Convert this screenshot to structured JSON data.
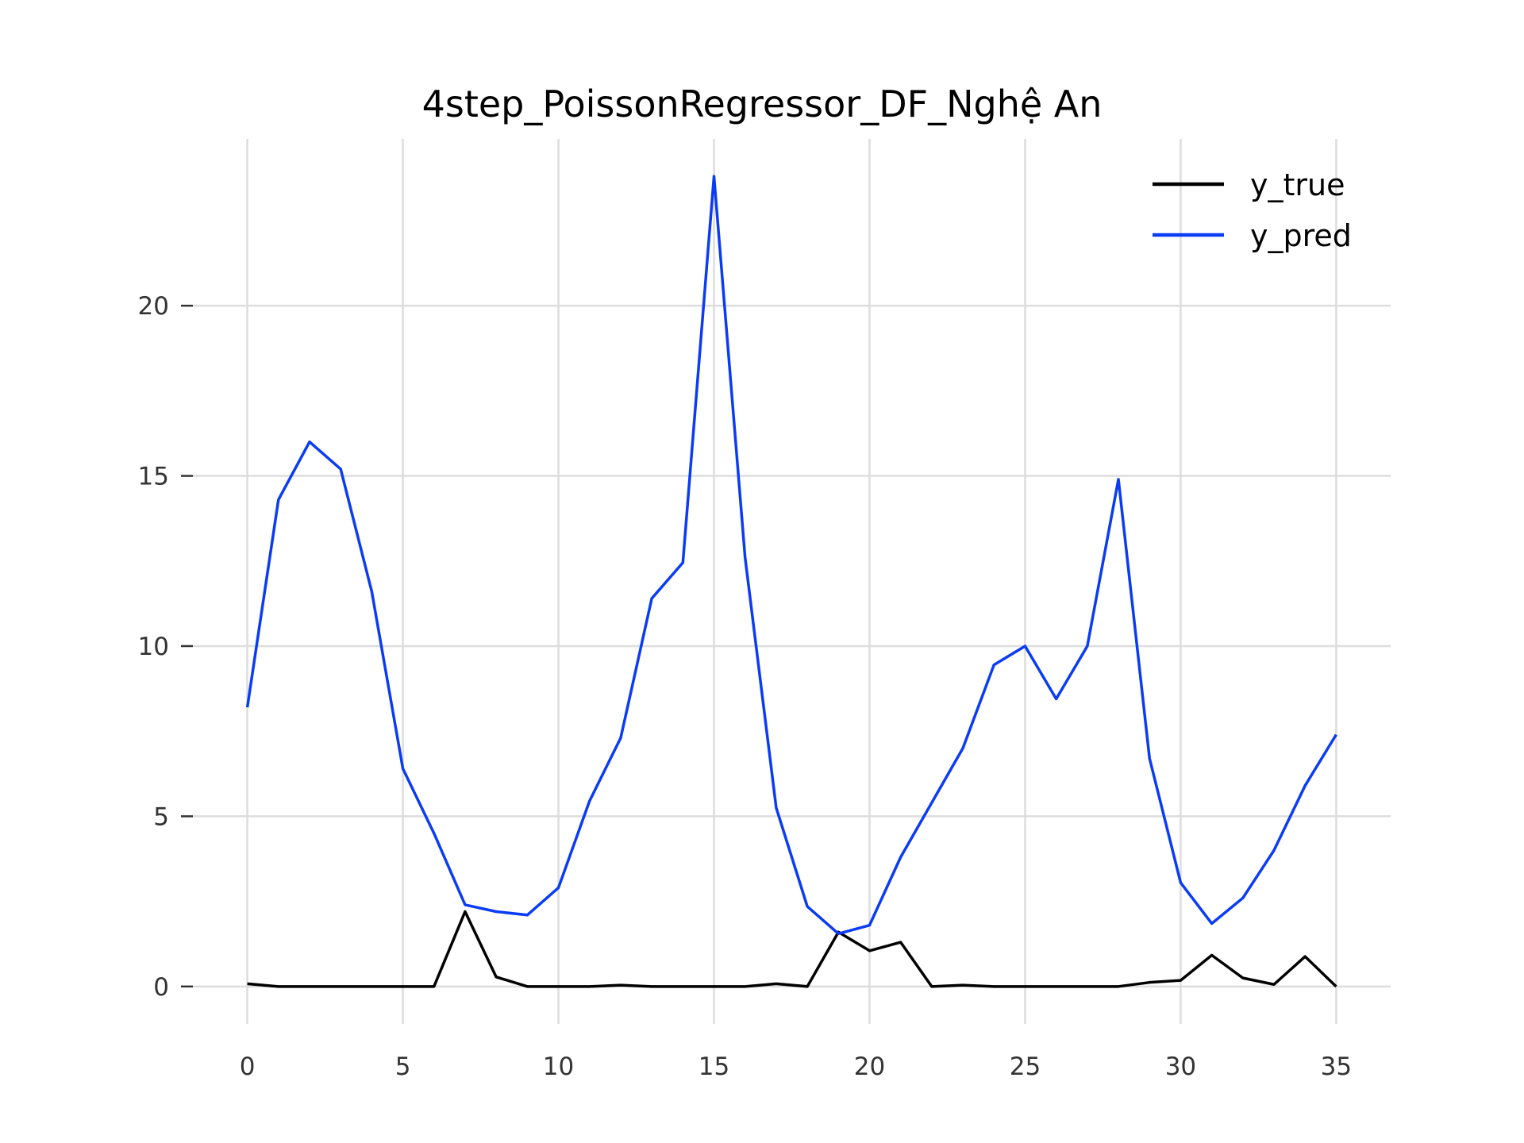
{
  "chart_data": {
    "type": "line",
    "title": "4step_PoissonRegressor_DF_Nghệ An",
    "xlabel": "",
    "ylabel": "",
    "xlim": [
      -1.75,
      36.75
    ],
    "ylim": [
      -1.1,
      24.9
    ],
    "x_ticks": [
      0,
      5,
      10,
      15,
      20,
      25,
      30,
      35
    ],
    "y_ticks": [
      0,
      5,
      10,
      15,
      20
    ],
    "grid": true,
    "legend_position": "top-right",
    "x": [
      0,
      1,
      2,
      3,
      4,
      5,
      6,
      7,
      8,
      9,
      10,
      11,
      12,
      13,
      14,
      15,
      16,
      17,
      18,
      19,
      20,
      21,
      22,
      23,
      24,
      25,
      26,
      27,
      28,
      29,
      30,
      31,
      32,
      33,
      34,
      35
    ],
    "series": [
      {
        "name": "y_true",
        "color": "#000000",
        "values": [
          0.08,
          0,
          0,
          0,
          0,
          0,
          0,
          2.2,
          0.28,
          0,
          0,
          0,
          0.04,
          0,
          0,
          0,
          0,
          0.08,
          0,
          1.6,
          1.05,
          1.3,
          0,
          0.04,
          0,
          0,
          0,
          0,
          0,
          0.12,
          0.18,
          0.92,
          0.25,
          0.06,
          0.88,
          0
        ]
      },
      {
        "name": "y_pred",
        "color": "#0b3cf5",
        "values": [
          8.2,
          14.3,
          16.0,
          15.2,
          11.6,
          6.4,
          4.5,
          2.4,
          2.2,
          2.1,
          2.9,
          5.45,
          7.3,
          11.4,
          12.45,
          23.8,
          12.6,
          5.25,
          2.35,
          1.55,
          1.8,
          3.8,
          5.4,
          7.0,
          9.45,
          10.0,
          8.45,
          10.0,
          14.9,
          6.7,
          3.05,
          1.85,
          2.6,
          4.0,
          5.9,
          7.4
        ]
      }
    ]
  }
}
